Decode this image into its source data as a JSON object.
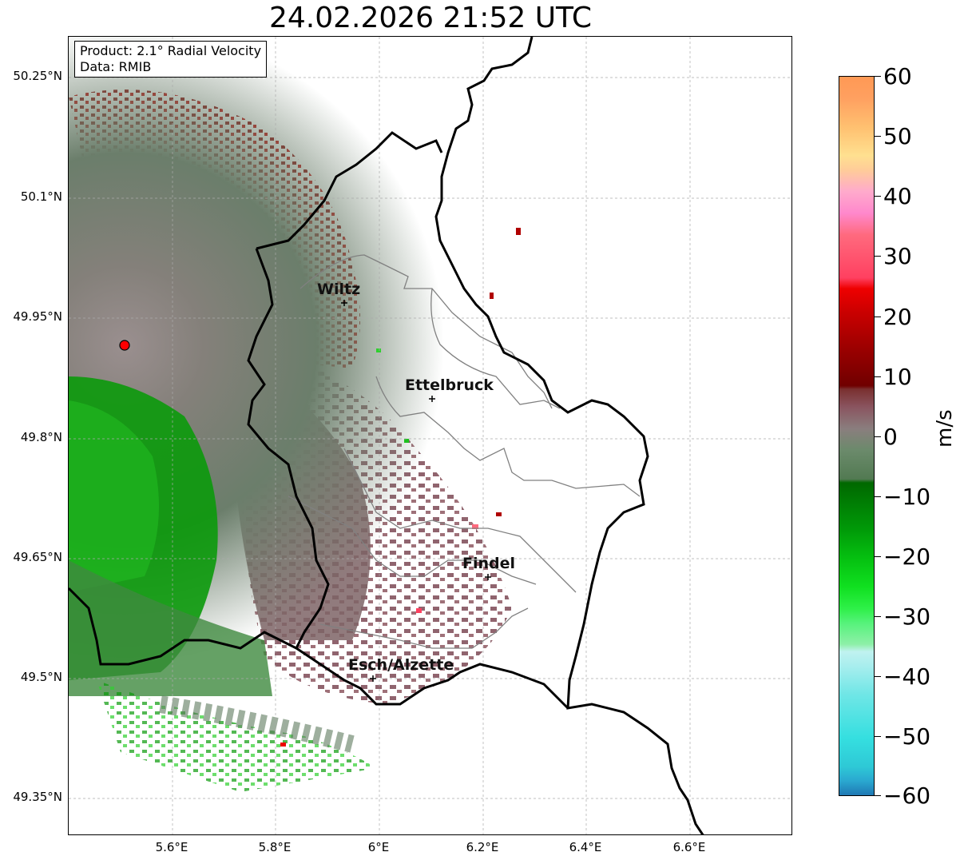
{
  "title": "24.02.2026 21:52 UTC",
  "info": {
    "product": "Product: 2.1° Radial Velocity",
    "data": "Data: RMIB"
  },
  "axes": {
    "lat_labels": [
      "50.25°N",
      "50.1°N",
      "49.95°N",
      "49.8°N",
      "49.65°N",
      "49.5°N",
      "49.35°N"
    ],
    "lon_labels": [
      "5.6°E",
      "5.8°E",
      "6°E",
      "6.2°E",
      "6.4°E",
      "6.6°E"
    ]
  },
  "cities": [
    {
      "name": "Wiltz"
    },
    {
      "name": "Ettelbruck"
    },
    {
      "name": "Findel"
    },
    {
      "name": "Esch/Alzette"
    }
  ],
  "colorbar": {
    "unit": "m/s",
    "ticks": [
      "60",
      "50",
      "40",
      "30",
      "20",
      "10",
      "0",
      "−10",
      "−20",
      "−30",
      "−40",
      "−50",
      "−60"
    ],
    "range": [
      -60,
      60
    ]
  },
  "colors": {
    "outbound_red": "#a00000",
    "inbound_green": "#00a000",
    "near_zero_grey": "#7a7a7a",
    "radar_site": "#ff0000"
  }
}
